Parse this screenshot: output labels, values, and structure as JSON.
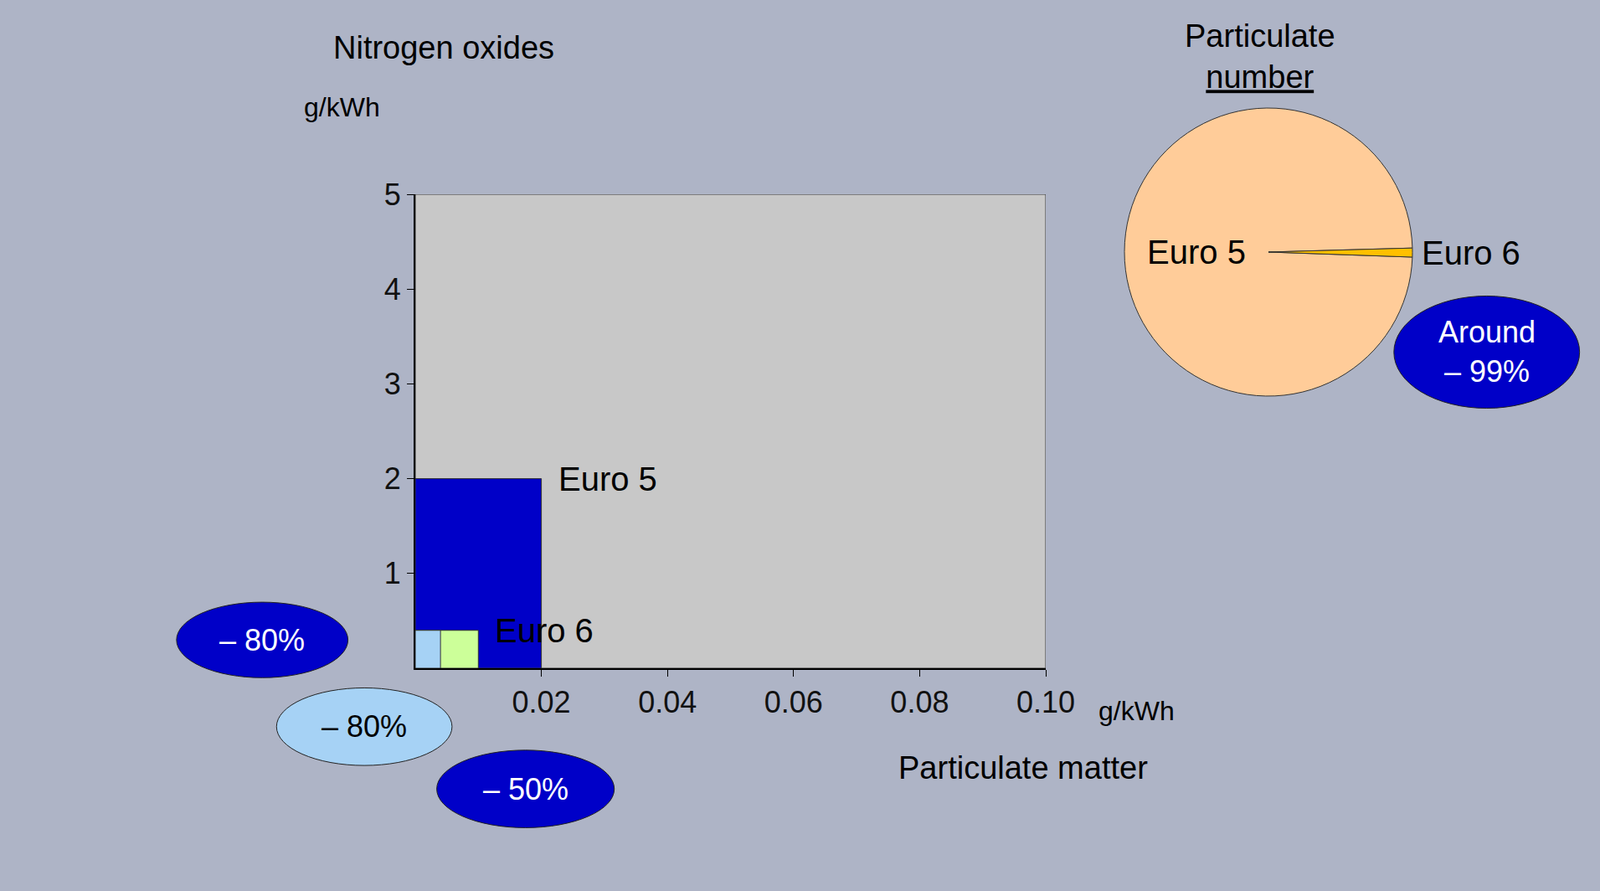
{
  "chart_data": [
    {
      "type": "rectangle",
      "x_label": "Particulate matter",
      "y_label": "Nitrogen oxides",
      "x_unit": "g/kWh",
      "y_unit": "g/kWh",
      "xlim": [
        0,
        0.1
      ],
      "ylim": [
        0,
        5
      ],
      "xticks": [
        0.02,
        0.04,
        0.06,
        0.08,
        {
          "value": 0.1,
          "label": "0.10"
        }
      ],
      "yticks": [
        1,
        2,
        3,
        4,
        5
      ],
      "series": [
        {
          "color": "#c8c8c8",
          "x": 0.1,
          "y": 5
        },
        {
          "name": "Euro 5",
          "color": "#0000c8",
          "x": 0.02,
          "y": 2
        },
        {
          "name": "Euro 6",
          "color": "#ccff99",
          "x": 0.01,
          "y": 0.4
        },
        {
          "color": "#a6d2f5",
          "x": 0.004,
          "y": 0.4
        }
      ],
      "annotations": [
        {
          "text": "– 80%",
          "color": "#0000c8"
        },
        {
          "text": "– 80%",
          "color": "#a6d2f5"
        },
        {
          "text": "– 50%",
          "color": "#0000c8"
        }
      ]
    },
    {
      "type": "pie",
      "title": "Particulate number",
      "categories": [
        "Euro 5",
        "Euro 6"
      ],
      "values": [
        99,
        1
      ],
      "colors": [
        "#ffcc99",
        "#ffc000"
      ],
      "annotations": [
        {
          "text": "Around – 99%",
          "color": "#0000c8"
        }
      ]
    }
  ]
}
